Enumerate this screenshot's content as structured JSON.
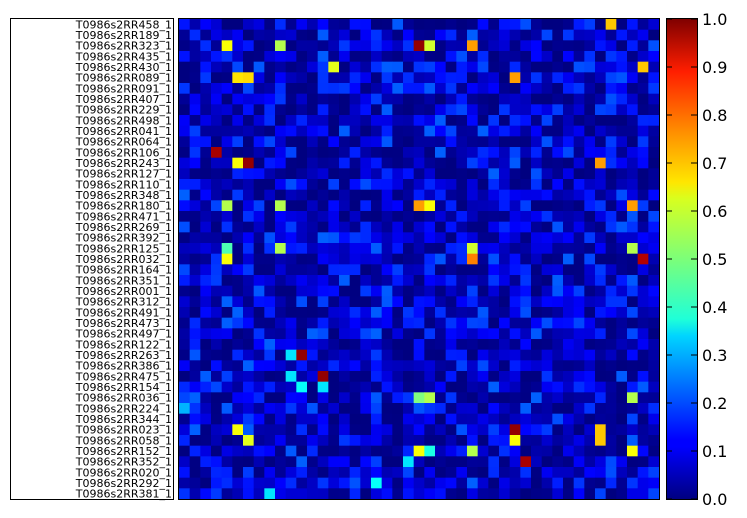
{
  "chart_data": {
    "type": "heatmap",
    "title": "",
    "xlabel": "",
    "ylabel": "",
    "row_labels": [
      "T0986s2RR458_1",
      "T0986s2RR189_1",
      "T0986s2RR323_1",
      "T0986s2RR435_1",
      "T0986s2RR430_1",
      "T0986s2RR089_1",
      "T0986s2RR091_1",
      "T0986s2RR407_1",
      "T0986s2RR229_1",
      "T0986s2RR498_1",
      "T0986s2RR041_1",
      "T0986s2RR064_1",
      "T0986s2RR106_1",
      "T0986s2RR243_1",
      "T0986s2RR127_1",
      "T0986s2RR110_1",
      "T0986s2RR348_1",
      "T0986s2RR180_1",
      "T0986s2RR471_1",
      "T0986s2RR269_1",
      "T0986s2RR392_1",
      "T0986s2RR125_1",
      "T0986s2RR032_1",
      "T0986s2RR164_1",
      "T0986s2RR351_1",
      "T0986s2RR001_1",
      "T0986s2RR312_1",
      "T0986s2RR491_1",
      "T0986s2RR473_1",
      "T0986s2RR497_1",
      "T0986s2RR122_1",
      "T0986s2RR263_1",
      "T0986s2RR386_1",
      "T0986s2RR475_1",
      "T0986s2RR154_1",
      "T0986s2RR036_1",
      "T0986s2RR224_1",
      "T0986s2RR344_1",
      "T0986s2RR023_1",
      "T0986s2RR058_1",
      "T0986s2RR152_1",
      "T0986s2RR352_1",
      "T0986s2RR020_1",
      "T0986s2RR292_1",
      "T0986s2RR381_1"
    ],
    "n_cols": 45,
    "zlim": [
      0.0,
      1.0
    ],
    "colormap": "jet",
    "colorbar_ticks": [
      "0.0",
      "0.1",
      "0.2",
      "0.3",
      "0.4",
      "0.5",
      "0.6",
      "0.7",
      "0.8",
      "0.9",
      "1.0"
    ],
    "highlights": [
      {
        "row": 0,
        "col": 40,
        "value": 0.68
      },
      {
        "row": 2,
        "col": 4,
        "value": 0.62
      },
      {
        "row": 2,
        "col": 9,
        "value": 0.55
      },
      {
        "row": 2,
        "col": 22,
        "value": 0.98
      },
      {
        "row": 2,
        "col": 23,
        "value": 0.58
      },
      {
        "row": 2,
        "col": 27,
        "value": 0.72
      },
      {
        "row": 4,
        "col": 14,
        "value": 0.6
      },
      {
        "row": 4,
        "col": 43,
        "value": 0.68
      },
      {
        "row": 5,
        "col": 5,
        "value": 0.65
      },
      {
        "row": 5,
        "col": 6,
        "value": 0.66
      },
      {
        "row": 5,
        "col": 31,
        "value": 0.72
      },
      {
        "row": 12,
        "col": 3,
        "value": 0.96
      },
      {
        "row": 13,
        "col": 5,
        "value": 0.62
      },
      {
        "row": 13,
        "col": 6,
        "value": 0.98
      },
      {
        "row": 13,
        "col": 39,
        "value": 0.72
      },
      {
        "row": 17,
        "col": 4,
        "value": 0.55
      },
      {
        "row": 17,
        "col": 9,
        "value": 0.55
      },
      {
        "row": 17,
        "col": 22,
        "value": 0.72
      },
      {
        "row": 17,
        "col": 23,
        "value": 0.62
      },
      {
        "row": 17,
        "col": 42,
        "value": 0.72
      },
      {
        "row": 21,
        "col": 4,
        "value": 0.45
      },
      {
        "row": 21,
        "col": 9,
        "value": 0.55
      },
      {
        "row": 21,
        "col": 22,
        "value": 0.05
      },
      {
        "row": 21,
        "col": 27,
        "value": 0.58
      },
      {
        "row": 21,
        "col": 42,
        "value": 0.55
      },
      {
        "row": 22,
        "col": 4,
        "value": 0.62
      },
      {
        "row": 22,
        "col": 27,
        "value": 0.75
      },
      {
        "row": 22,
        "col": 43,
        "value": 0.95
      },
      {
        "row": 31,
        "col": 10,
        "value": 0.35
      },
      {
        "row": 31,
        "col": 11,
        "value": 0.98
      },
      {
        "row": 33,
        "col": 10,
        "value": 0.35
      },
      {
        "row": 33,
        "col": 13,
        "value": 0.98
      },
      {
        "row": 34,
        "col": 11,
        "value": 0.38
      },
      {
        "row": 34,
        "col": 13,
        "value": 0.35
      },
      {
        "row": 35,
        "col": 23,
        "value": 0.55
      },
      {
        "row": 35,
        "col": 22,
        "value": 0.5
      },
      {
        "row": 35,
        "col": 42,
        "value": 0.55
      },
      {
        "row": 36,
        "col": 0,
        "value": 0.3
      },
      {
        "row": 38,
        "col": 5,
        "value": 0.62
      },
      {
        "row": 38,
        "col": 31,
        "value": 0.98
      },
      {
        "row": 38,
        "col": 39,
        "value": 0.68
      },
      {
        "row": 39,
        "col": 6,
        "value": 0.6
      },
      {
        "row": 39,
        "col": 31,
        "value": 0.62
      },
      {
        "row": 39,
        "col": 39,
        "value": 0.68
      },
      {
        "row": 40,
        "col": 22,
        "value": 0.62
      },
      {
        "row": 40,
        "col": 23,
        "value": 0.4
      },
      {
        "row": 40,
        "col": 27,
        "value": 0.55
      },
      {
        "row": 40,
        "col": 42,
        "value": 0.62
      },
      {
        "row": 41,
        "col": 21,
        "value": 0.35
      },
      {
        "row": 41,
        "col": 32,
        "value": 0.96
      },
      {
        "row": 43,
        "col": 18,
        "value": 0.38
      },
      {
        "row": 44,
        "col": 8,
        "value": 0.35
      }
    ],
    "background_range": [
      0.0,
      0.22
    ]
  }
}
